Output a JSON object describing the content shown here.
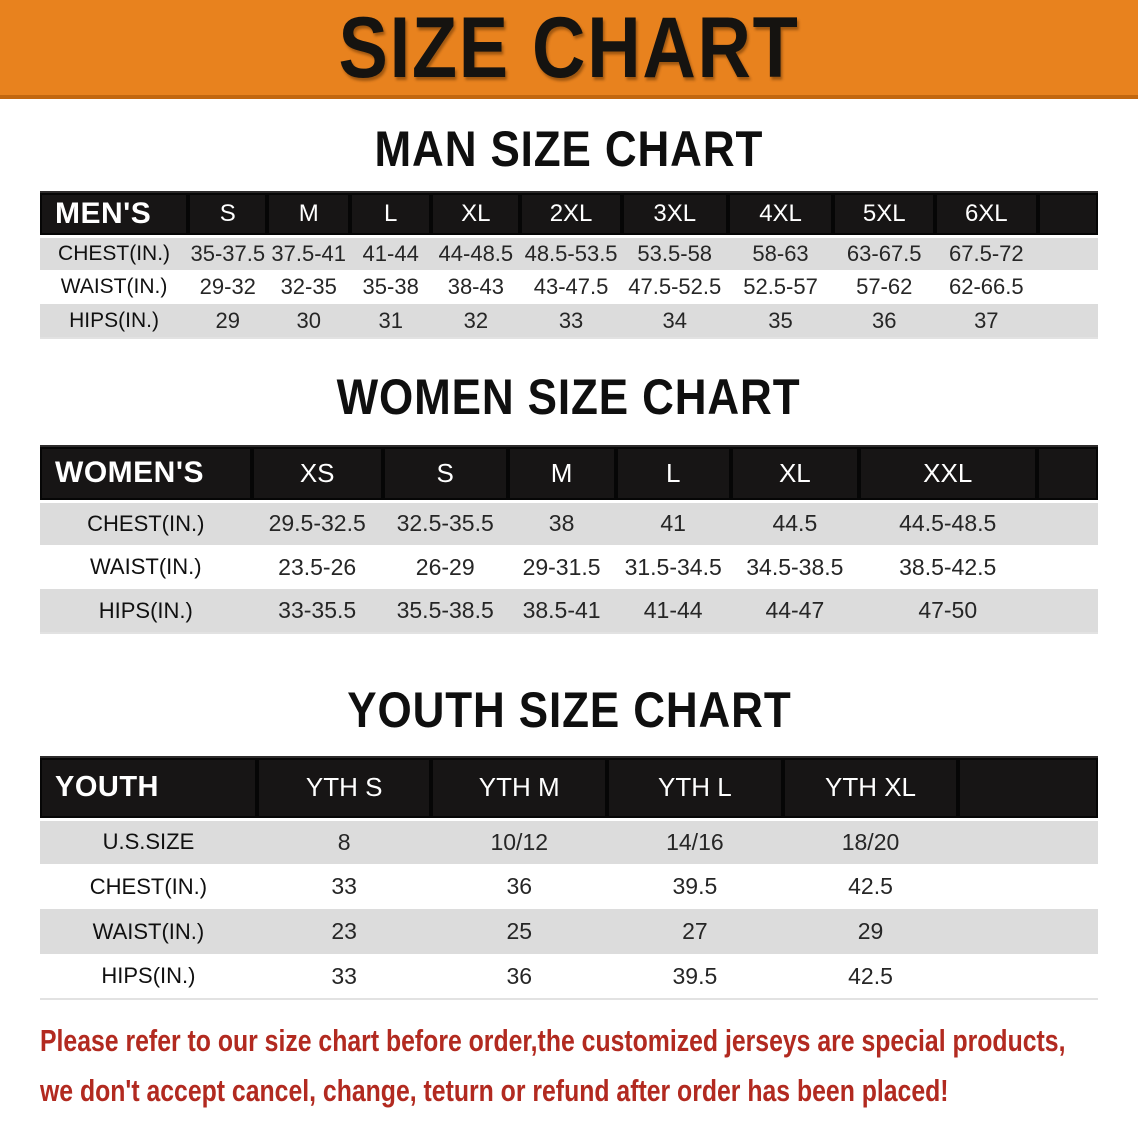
{
  "banner": {
    "title": "SIZE CHART"
  },
  "sections": [
    {
      "heading": "MAN SIZE CHART",
      "table": {
        "header_label": "MEN'S",
        "sizes": [
          "S",
          "M",
          "L",
          "XL",
          "2XL",
          "3XL",
          "4XL",
          "5XL",
          "6XL"
        ],
        "rows": [
          {
            "label": "CHEST(IN.)",
            "values": [
              "35-37.5",
              "37.5-41",
              "41-44",
              "44-48.5",
              "48.5-53.5",
              "53.5-58",
              "58-63",
              "63-67.5",
              "67.5-72"
            ]
          },
          {
            "label": "WAIST(IN.)",
            "values": [
              "29-32",
              "32-35",
              "35-38",
              "38-43",
              "43-47.5",
              "47.5-52.5",
              "52.5-57",
              "57-62",
              "62-66.5"
            ]
          },
          {
            "label": "HIPS(IN.)",
            "values": [
              "29",
              "30",
              "31",
              "32",
              "33",
              "34",
              "35",
              "36",
              "37"
            ]
          }
        ]
      }
    },
    {
      "heading": "WOMEN SIZE CHART",
      "table": {
        "header_label": "WOMEN'S",
        "sizes": [
          "XS",
          "S",
          "M",
          "L",
          "XL",
          "XXL"
        ],
        "rows": [
          {
            "label": "CHEST(IN.)",
            "values": [
              "29.5-32.5",
              "32.5-35.5",
              "38",
              "41",
              "44.5",
              "44.5-48.5"
            ]
          },
          {
            "label": "WAIST(IN.)",
            "values": [
              "23.5-26",
              "26-29",
              "29-31.5",
              "31.5-34.5",
              "34.5-38.5",
              "38.5-42.5"
            ]
          },
          {
            "label": "HIPS(IN.)",
            "values": [
              "33-35.5",
              "35.5-38.5",
              "38.5-41",
              "41-44",
              "44-47",
              "47-50"
            ]
          }
        ]
      }
    },
    {
      "heading": "YOUTH SIZE CHART",
      "table": {
        "header_label": "YOUTH",
        "sizes": [
          "YTH S",
          "YTH M",
          "YTH L",
          "YTH XL"
        ],
        "rows": [
          {
            "label": "U.S.SIZE",
            "values": [
              "8",
              "10/12",
              "14/16",
              "18/20"
            ]
          },
          {
            "label": "CHEST(IN.)",
            "values": [
              "33",
              "36",
              "39.5",
              "42.5"
            ]
          },
          {
            "label": "WAIST(IN.)",
            "values": [
              "23",
              "25",
              "27",
              "29"
            ]
          },
          {
            "label": "HIPS(IN.)",
            "values": [
              "33",
              "36",
              "39.5",
              "42.5"
            ]
          }
        ]
      }
    }
  ],
  "disclaimer": {
    "line1": "Please refer to our size chart before order,the customized jerseys are special products,",
    "line2": "we don't accept cancel, change, teturn or refund after order has been placed!"
  },
  "colors": {
    "banner_bg": "#E8821E",
    "banner_border": "#C2670F",
    "header_bar": "#171515",
    "row_stripe": "#DCDCDC",
    "disclaimer_red": "#B22A20"
  }
}
